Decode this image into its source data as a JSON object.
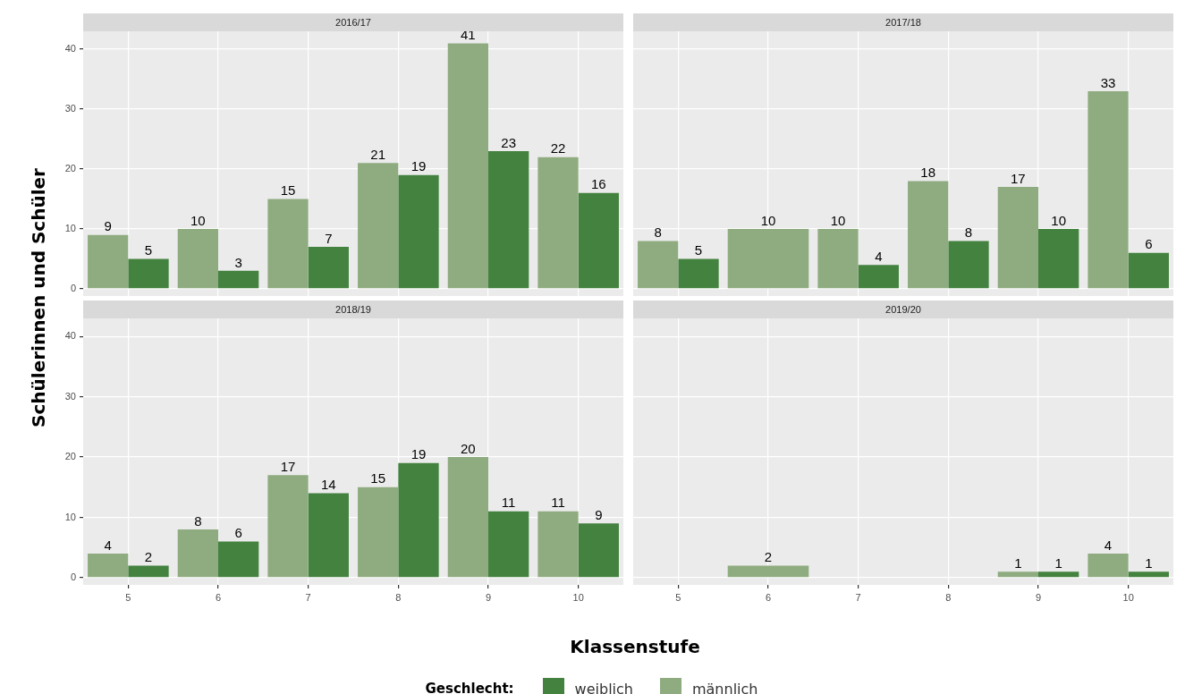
{
  "chart_data": [
    {
      "type": "bar",
      "title": "2016/17",
      "ylabel": "Schülerinnen und Schüler",
      "xlabel": "Klassenstufe",
      "legend": "bottom",
      "legend_title": "Geschlecht:",
      "categories": [
        "5",
        "6",
        "7",
        "8",
        "9",
        "10"
      ],
      "series": [
        {
          "name": "männlich",
          "color": "#8fac80",
          "values": [
            9,
            10,
            15,
            21,
            41,
            22
          ]
        },
        {
          "name": "weiblich",
          "color": "#43823f",
          "values": [
            5,
            3,
            7,
            19,
            23,
            16
          ]
        }
      ],
      "ylim": [
        -1.2,
        43
      ],
      "yticks": [
        0,
        10,
        20,
        30,
        40
      ],
      "grid": true,
      "data_labels": true,
      "tick_labels": "y"
    },
    {
      "type": "bar",
      "title": "2017/18",
      "categories": [
        "5",
        "6",
        "7",
        "8",
        "9",
        "10"
      ],
      "series": [
        {
          "color": "#8fac80",
          "values": [
            8,
            10,
            10,
            18,
            17,
            33
          ]
        },
        {
          "color": "#43823f",
          "values": [
            5,
            null,
            4,
            8,
            10,
            6
          ]
        }
      ],
      "ylim": [
        -1.2,
        43
      ],
      "yticks": [
        0,
        10,
        20,
        30,
        40
      ],
      "grid": true,
      "data_labels": true,
      "tick_labels": false
    },
    {
      "type": "bar",
      "title": "2018/19",
      "categories": [
        "5",
        "6",
        "7",
        "8",
        "9",
        "10"
      ],
      "series": [
        {
          "color": "#8fac80",
          "values": [
            4,
            8,
            17,
            15,
            20,
            11
          ]
        },
        {
          "color": "#43823f",
          "values": [
            2,
            6,
            14,
            19,
            11,
            9
          ]
        }
      ],
      "ylim": [
        -1.2,
        43
      ],
      "yticks": [
        0,
        10,
        20,
        30,
        40
      ],
      "grid": true,
      "data_labels": true
    },
    {
      "type": "bar",
      "title": "2019/20",
      "categories": [
        "5",
        "6",
        "7",
        "8",
        "9",
        "10"
      ],
      "series": [
        {
          "color": "#8fac80",
          "values": [
            null,
            2,
            null,
            null,
            1,
            4
          ]
        },
        {
          "color": "#43823f",
          "values": [
            null,
            null,
            null,
            null,
            1,
            1
          ]
        }
      ],
      "ylim": [
        -1.2,
        43
      ],
      "yticks": [
        0,
        10,
        20,
        30,
        40
      ],
      "grid": true,
      "data_labels": true,
      "tick_labels": "x"
    }
  ]
}
